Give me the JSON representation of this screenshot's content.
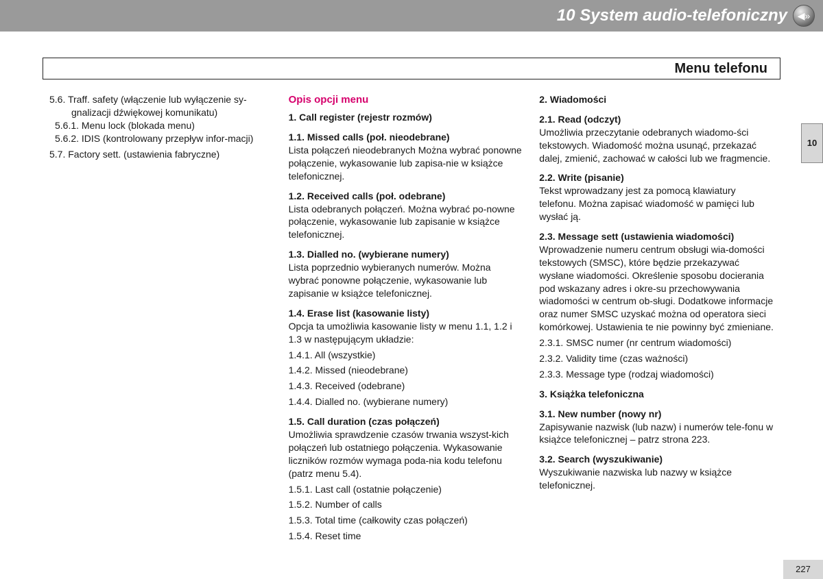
{
  "header": {
    "chapter_title": "10 System audio-telefoniczny"
  },
  "section_frame": {
    "title": "Menu telefonu"
  },
  "side_tab": {
    "label": "10"
  },
  "page_number": "227",
  "col1": {
    "l1": "5.6. Traff. safety (włączenie lub wyłączenie sy-gnalizacji dźwiękowej komunikatu)",
    "l2": "5.6.1. Menu lock (blokada menu)",
    "l3": "5.6.2. IDIS (kontrolowany przepływ infor-macji)",
    "l4": "5.7. Factory sett. (ustawienia fabryczne)"
  },
  "col2": {
    "red": "Opis opcji menu",
    "h1": "1. Call register (rejestr rozmów)",
    "h11": "1.1. Missed calls (poł. nieodebrane)",
    "t11": "Lista połączeń nieodebranych Można wybrać ponowne połączenie, wykasowanie lub zapisa-nie w książce telefonicznej.",
    "h12": "1.2. Received calls (poł. odebrane)",
    "t12": "Lista odebranych połączeń. Można wybrać po-nowne połączenie, wykasowanie lub zapisanie w książce telefonicznej.",
    "h13": "1.3. Dialled no. (wybierane numery)",
    "t13": "Lista poprzednio wybieranych numerów. Można wybrać ponowne połączenie, wykasowanie lub zapisanie w książce telefonicznej.",
    "h14": "1.4. Erase list (kasowanie listy)",
    "t14": "Opcja ta umożliwia kasowanie listy w menu 1.1, 1.2 i 1.3 w następującym układzie:",
    "l141": "1.4.1. All (wszystkie)",
    "l142": "1.4.2. Missed (nieodebrane)",
    "l143": "1.4.3. Received (odebrane)",
    "l144": "1.4.4. Dialled no. (wybierane numery)",
    "h15": "1.5. Call duration (czas połączeń)",
    "t15": "Umożliwia sprawdzenie czasów trwania wszyst-kich połączeń lub ostatniego połączenia. Wykasowanie liczników rozmów wymaga poda-nia kodu telefonu (patrz menu 5.4).",
    "l151": "1.5.1. Last call (ostatnie połączenie)",
    "l152": "1.5.2. Number of calls",
    "l153": "1.5.3. Total time (całkowity czas połączeń)",
    "l154": "1.5.4. Reset time"
  },
  "col3": {
    "h2": "2. Wiadomości",
    "h21": "2.1. Read (odczyt)",
    "t21": "Umożliwia przeczytanie odebranych wiadomo-ści tekstowych. Wiadomość można usunąć, przekazać dalej, zmienić, zachować w całości lub we fragmencie.",
    "h22": "2.2. Write (pisanie)",
    "t22": "Tekst wprowadzany jest za pomocą klawiatury telefonu. Można zapisać wiadomość w pamięci lub wysłać ją.",
    "h23": "2.3. Message sett (ustawienia wiadomości)",
    "t23": "Wprowadzenie numeru centrum obsługi wia-domości tekstowych (SMSC), które będzie przekazywać wysłane wiadomości. Określenie sposobu docierania pod wskazany adres i okre-su przechowywania wiadomości w centrum ob-sługi. Dodatkowe informacje oraz numer SMSC uzyskać można od operatora sieci komórkowej. Ustawienia te nie powinny być zmieniane.",
    "l231": "2.3.1. SMSC numer (nr centrum wiadomości)",
    "l232": "2.3.2. Validity time (czas ważności)",
    "l233": "2.3.3. Message type (rodzaj wiadomości)",
    "h3": "3. Książka telefoniczna",
    "h31": "3.1. New number (nowy nr)",
    "t31": "Zapisywanie nazwisk (lub nazw) i numerów tele-fonu w książce telefonicznej – patrz strona 223.",
    "h32": "3.2. Search (wyszukiwanie)",
    "t32": "Wyszukiwanie nazwiska lub nazwy w książce telefonicznej."
  }
}
